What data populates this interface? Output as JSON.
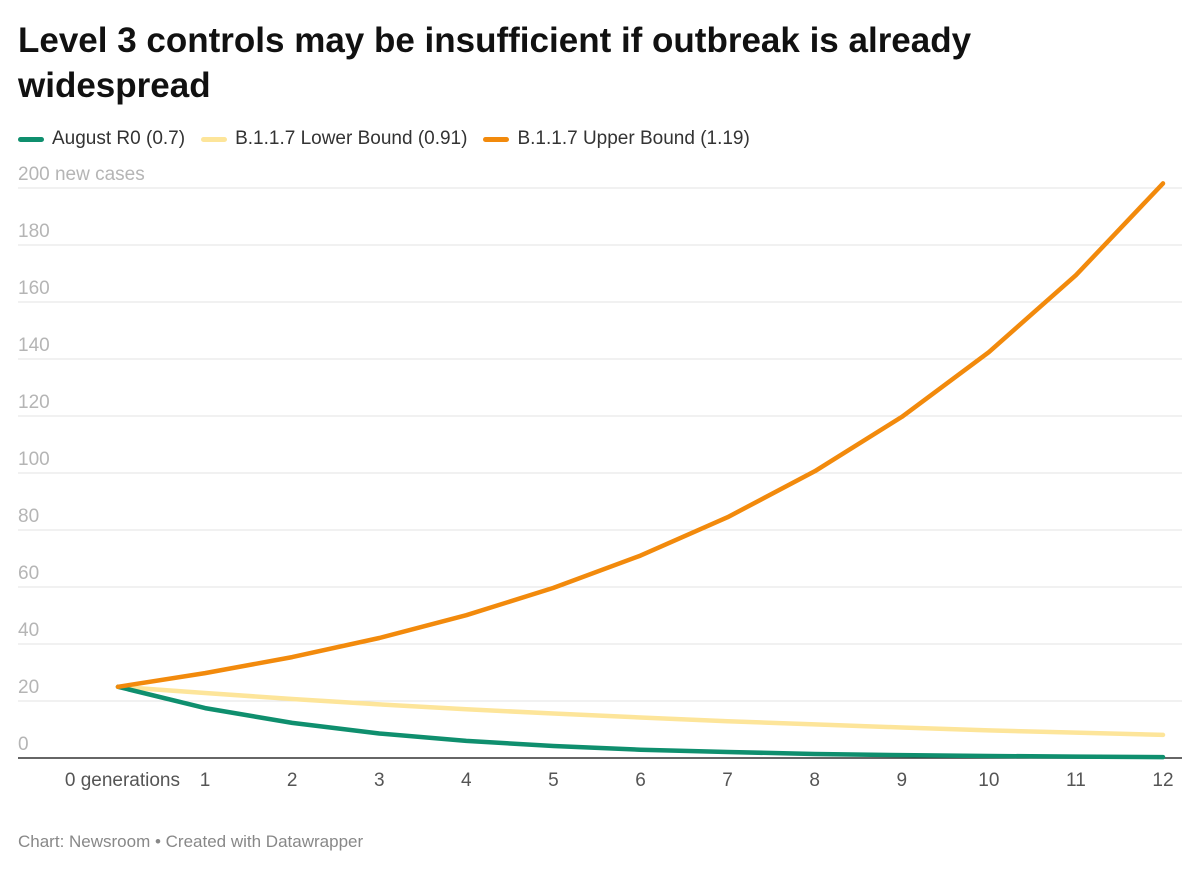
{
  "title": "Level 3 controls may be insufficient if outbreak is already widespread",
  "footer": "Chart: Newsroom • Created with Datawrapper",
  "chart_data": {
    "type": "line",
    "title": "Level 3 controls may be insufficient if outbreak is already widespread",
    "x": [
      0,
      1,
      2,
      3,
      4,
      5,
      6,
      7,
      8,
      9,
      10,
      11,
      12
    ],
    "x_tick_labels": [
      "0 generations",
      "1",
      "2",
      "3",
      "4",
      "5",
      "6",
      "7",
      "8",
      "9",
      "10",
      "11",
      "12"
    ],
    "y_tick_labels": [
      "0",
      "20",
      "40",
      "60",
      "80",
      "100",
      "120",
      "140",
      "160",
      "180",
      "200 new cases"
    ],
    "y_ticks": [
      0,
      20,
      40,
      60,
      80,
      100,
      120,
      140,
      160,
      180,
      200
    ],
    "ylim": [
      0,
      200
    ],
    "xlim": [
      0,
      12
    ],
    "grid": true,
    "legend_position": "top-left",
    "series": [
      {
        "name": "August R0 (0.7)",
        "color": "#0f8f6e",
        "values": [
          25,
          17.5,
          12.3,
          8.6,
          6.0,
          4.2,
          2.9,
          2.1,
          1.4,
          1.0,
          0.7,
          0.5,
          0.3
        ]
      },
      {
        "name": "B.1.1.7 Lower Bound (0.91)",
        "color": "#fde59a",
        "values": [
          25,
          22.8,
          20.7,
          18.8,
          17.1,
          15.6,
          14.2,
          12.9,
          11.8,
          10.7,
          9.7,
          8.9,
          8.1
        ]
      },
      {
        "name": "B.1.1.7 Upper Bound (1.19)",
        "color": "#f28a0c",
        "values": [
          25,
          29.8,
          35.4,
          42.1,
          50.1,
          59.7,
          71.0,
          84.5,
          100.6,
          119.7,
          142.4,
          169.4,
          201.6
        ]
      }
    ]
  }
}
